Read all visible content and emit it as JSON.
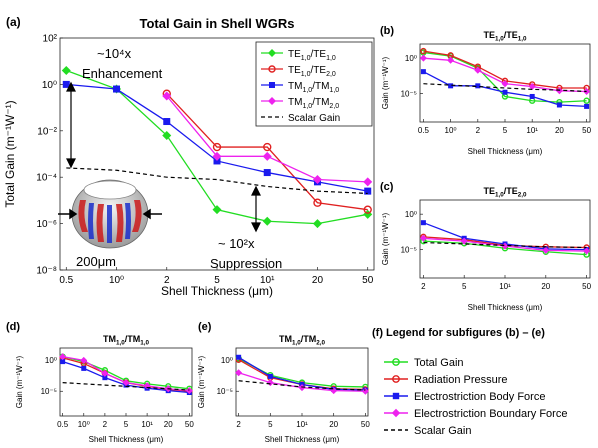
{
  "panels": [
    {
      "id": "a",
      "letter": "(a)",
      "title": "Total Gain in Shell WGRs",
      "xlabel": "Shell Thickness (μm)",
      "ylabel": "Total Gain (m⁻¹W⁻¹)",
      "legend": [
        "TE1,0/TE1,0",
        "TE1,0/TE2,0",
        "TM1,0/TM1,0",
        "TM1,0/TM2,0",
        "Scalar Gain"
      ],
      "annotations": {
        "enh_factor": "~10⁴x",
        "enh_label": "Enhancement",
        "sup_factor": "~ 10²x",
        "sup_label": "Suppression",
        "radius": "200μm"
      }
    },
    {
      "id": "b",
      "letter": "(b)",
      "title": "TE1,0/TE1,0",
      "xlabel": "Shell Thickness (μm)",
      "ylabel": "Gain (m⁻¹W⁻¹)"
    },
    {
      "id": "c",
      "letter": "(c)",
      "title": "TE1,0/TE2,0",
      "xlabel": "Shell Thickness (μm)",
      "ylabel": "Gain (m⁻¹W⁻¹)"
    },
    {
      "id": "d",
      "letter": "(d)",
      "title": "TM1,0/TM1,0",
      "xlabel": "Shell Thickness (μm)",
      "ylabel": "Gain (m⁻¹W⁻¹)"
    },
    {
      "id": "e",
      "letter": "(e)",
      "title": "TM1,0/TM2,0",
      "xlabel": "Shell Thickness (μm)",
      "ylabel": "Gain (m⁻¹W⁻¹)"
    }
  ],
  "subfig_legend": {
    "title": "(f) Legend for subfigures (b) – (e)",
    "entries": [
      "Total Gain",
      "Radiation Pressure",
      "Electrostriction Body Force",
      "Electrostriction Boundary Force",
      "Scalar Gain"
    ]
  },
  "colors": {
    "green": "#22dd22",
    "red": "#e02020",
    "blue": "#1a1aee",
    "magenta": "#ee22ee",
    "black": "#000000"
  },
  "chart_data": [
    {
      "panel": "a",
      "type": "line",
      "yscale": "log",
      "xscale": "categorical",
      "x": [
        "0.5",
        "10⁰",
        "2",
        "5",
        "10¹",
        "20",
        "50"
      ],
      "yticks": [
        "10²",
        "10⁰",
        "10⁻²",
        "10⁻⁴",
        "10⁻⁶",
        "10⁻⁸"
      ],
      "ylim_exp": [
        -8,
        2
      ],
      "series": [
        {
          "name": "TE1,0/TE1,0",
          "color": "green",
          "marker": "diamond",
          "x": [
            0,
            1,
            2,
            3,
            4,
            5,
            6
          ],
          "log10": [
            0.6,
            -0.2,
            -2.2,
            -5.4,
            -5.9,
            -6.0,
            -5.6
          ]
        },
        {
          "name": "TE1,0/TE2,0",
          "color": "red",
          "marker": "circle",
          "x": [
            2,
            3,
            4,
            5,
            6
          ],
          "log10": [
            -0.4,
            -2.7,
            -2.7,
            -5.1,
            -5.4
          ]
        },
        {
          "name": "TM1,0/TM1,0",
          "color": "blue",
          "marker": "square",
          "x": [
            0,
            1,
            2,
            3,
            4,
            5,
            6
          ],
          "log10": [
            0.0,
            -0.2,
            -1.6,
            -3.3,
            -3.8,
            -4.2,
            -4.6
          ]
        },
        {
          "name": "TM1,0/TM2,0",
          "color": "magenta",
          "marker": "diamond",
          "x": [
            2,
            3,
            4,
            5,
            6
          ],
          "log10": [
            -0.5,
            -3.1,
            -3.1,
            -4.1,
            -4.2
          ]
        },
        {
          "name": "Scalar Gain",
          "color": "black",
          "dash": true,
          "x": [
            0,
            1,
            2,
            3,
            4,
            5,
            6
          ],
          "log10": [
            -3.6,
            -3.7,
            -4.0,
            -4.1,
            -4.4,
            -4.6,
            -4.7
          ]
        }
      ]
    },
    {
      "panel": "b",
      "type": "line",
      "yscale": "log",
      "xscale": "categorical",
      "x": [
        "0.5",
        "10⁰",
        "2",
        "5",
        "10¹",
        "20",
        "50"
      ],
      "yticks": [
        "10⁰",
        "10⁻⁵"
      ],
      "ylim_exp": [
        -9,
        2
      ],
      "series": [
        {
          "name": "Total Gain",
          "color": "green",
          "marker": "circle",
          "x": [
            0,
            1,
            2,
            3,
            4,
            5,
            6
          ],
          "log10": [
            0.8,
            0.3,
            -1.4,
            -5.4,
            -6.0,
            -6.2,
            -6.0
          ]
        },
        {
          "name": "Radiation Pressure",
          "color": "red",
          "marker": "circle",
          "x": [
            0,
            1,
            2,
            3,
            4,
            5,
            6
          ],
          "log10": [
            1.0,
            0.4,
            -1.2,
            -3.2,
            -3.7,
            -4.2,
            -4.2
          ]
        },
        {
          "name": "Electrostriction Body Force",
          "color": "blue",
          "marker": "square",
          "x": [
            0,
            1,
            2,
            3,
            4,
            5,
            6
          ],
          "log10": [
            -1.9,
            -3.9,
            -3.9,
            -4.8,
            -5.4,
            -6.6,
            -6.8
          ]
        },
        {
          "name": "Electrostriction Boundary Force",
          "color": "magenta",
          "marker": "diamond",
          "x": [
            0,
            1,
            2,
            3,
            4,
            5,
            6
          ],
          "log10": [
            0.0,
            -0.3,
            -1.7,
            -3.6,
            -4.0,
            -4.6,
            -4.7
          ]
        },
        {
          "name": "Scalar Gain",
          "color": "black",
          "dash": true,
          "x": [
            0,
            1,
            2,
            3,
            4,
            5,
            6
          ],
          "log10": [
            -3.6,
            -3.8,
            -4.0,
            -4.2,
            -4.4,
            -4.5,
            -4.7
          ]
        }
      ]
    },
    {
      "panel": "c",
      "type": "line",
      "yscale": "log",
      "xscale": "categorical",
      "x": [
        "2",
        "5",
        "10¹",
        "20",
        "50"
      ],
      "yticks": [
        "10⁰",
        "10⁻⁵"
      ],
      "ylim_exp": [
        -9,
        2
      ],
      "series": [
        {
          "name": "Total Gain",
          "color": "green",
          "marker": "circle",
          "x": [
            0,
            1,
            2,
            3,
            4
          ],
          "log10": [
            -3.8,
            -4.1,
            -4.8,
            -5.3,
            -5.7
          ]
        },
        {
          "name": "Radiation Pressure",
          "color": "red",
          "marker": "circle",
          "x": [
            0,
            1,
            2,
            3,
            4
          ],
          "log10": [
            -3.2,
            -3.6,
            -4.4,
            -4.6,
            -4.7
          ]
        },
        {
          "name": "Electrostriction Body Force",
          "color": "blue",
          "marker": "square",
          "x": [
            0,
            1,
            2,
            3,
            4
          ],
          "log10": [
            -1.2,
            -3.4,
            -4.2,
            -4.9,
            -5.0
          ]
        },
        {
          "name": "Electrostriction Boundary Force",
          "color": "magenta",
          "marker": "diamond",
          "x": [
            0,
            1,
            2,
            3,
            4
          ],
          "log10": [
            -3.4,
            -3.8,
            -4.5,
            -5.1,
            -5.2
          ]
        },
        {
          "name": "Scalar Gain",
          "color": "black",
          "dash": true,
          "x": [
            0,
            1,
            2,
            3,
            4
          ],
          "log10": [
            -4.0,
            -4.2,
            -4.4,
            -4.6,
            -4.7
          ]
        }
      ]
    },
    {
      "panel": "d",
      "type": "line",
      "yscale": "log",
      "xscale": "categorical",
      "x": [
        "0.5",
        "10⁰",
        "2",
        "5",
        "10¹",
        "20",
        "50"
      ],
      "yticks": [
        "10⁰",
        "10⁻⁵"
      ],
      "ylim_exp": [
        -9,
        2
      ],
      "series": [
        {
          "name": "Total Gain",
          "color": "green",
          "marker": "circle",
          "x": [
            0,
            1,
            2,
            3,
            4,
            5,
            6
          ],
          "log10": [
            0.6,
            -0.2,
            -1.6,
            -3.3,
            -3.8,
            -4.2,
            -4.6
          ]
        },
        {
          "name": "Radiation Pressure",
          "color": "red",
          "marker": "circle",
          "x": [
            0,
            1,
            2,
            3,
            4,
            5,
            6
          ],
          "log10": [
            0.4,
            -0.5,
            -2.1,
            -3.6,
            -4.2,
            -4.7,
            -5.0
          ]
        },
        {
          "name": "Electrostriction Body Force",
          "color": "blue",
          "marker": "square",
          "x": [
            0,
            1,
            2,
            3,
            4,
            5,
            6
          ],
          "log10": [
            -0.2,
            -1.3,
            -2.8,
            -4.0,
            -4.5,
            -4.9,
            -5.2
          ]
        },
        {
          "name": "Electrostriction Boundary Force",
          "color": "magenta",
          "marker": "diamond",
          "x": [
            0,
            1,
            2,
            3,
            4,
            5,
            6
          ],
          "log10": [
            0.6,
            0.0,
            -2.1,
            -3.6,
            -4.1,
            -4.6,
            -4.9
          ]
        },
        {
          "name": "Scalar Gain",
          "color": "black",
          "dash": true,
          "x": [
            0,
            1,
            2,
            3,
            4,
            5,
            6
          ],
          "log10": [
            -3.6,
            -3.8,
            -4.0,
            -4.2,
            -4.4,
            -4.6,
            -4.8
          ]
        }
      ]
    },
    {
      "panel": "e",
      "type": "line",
      "yscale": "log",
      "xscale": "categorical",
      "x": [
        "2",
        "5",
        "10¹",
        "20",
        "50"
      ],
      "yticks": [
        "10⁰",
        "10⁻⁵"
      ],
      "ylim_exp": [
        -9,
        2
      ],
      "series": [
        {
          "name": "Total Gain",
          "color": "green",
          "marker": "circle",
          "x": [
            0,
            1,
            2,
            3,
            4
          ],
          "log10": [
            0.3,
            -2.4,
            -3.6,
            -4.2,
            -4.3
          ]
        },
        {
          "name": "Radiation Pressure",
          "color": "red",
          "marker": "circle",
          "x": [
            0,
            1,
            2,
            3,
            4
          ],
          "log10": [
            0.1,
            -2.8,
            -3.9,
            -4.6,
            -4.7
          ]
        },
        {
          "name": "Electrostriction Body Force",
          "color": "blue",
          "marker": "square",
          "x": [
            0,
            1,
            2,
            3,
            4
          ],
          "log10": [
            0.5,
            -2.6,
            -3.9,
            -4.7,
            -4.8
          ]
        },
        {
          "name": "Electrostriction Boundary Force",
          "color": "magenta",
          "marker": "diamond",
          "x": [
            0,
            1,
            2,
            3,
            4
          ],
          "log10": [
            -2.0,
            -3.6,
            -4.4,
            -4.9,
            -5.0
          ]
        },
        {
          "name": "Scalar Gain",
          "color": "black",
          "dash": true,
          "x": [
            0,
            1,
            2,
            3,
            4
          ],
          "log10": [
            -3.3,
            -3.8,
            -4.3,
            -4.6,
            -4.8
          ]
        }
      ]
    }
  ]
}
